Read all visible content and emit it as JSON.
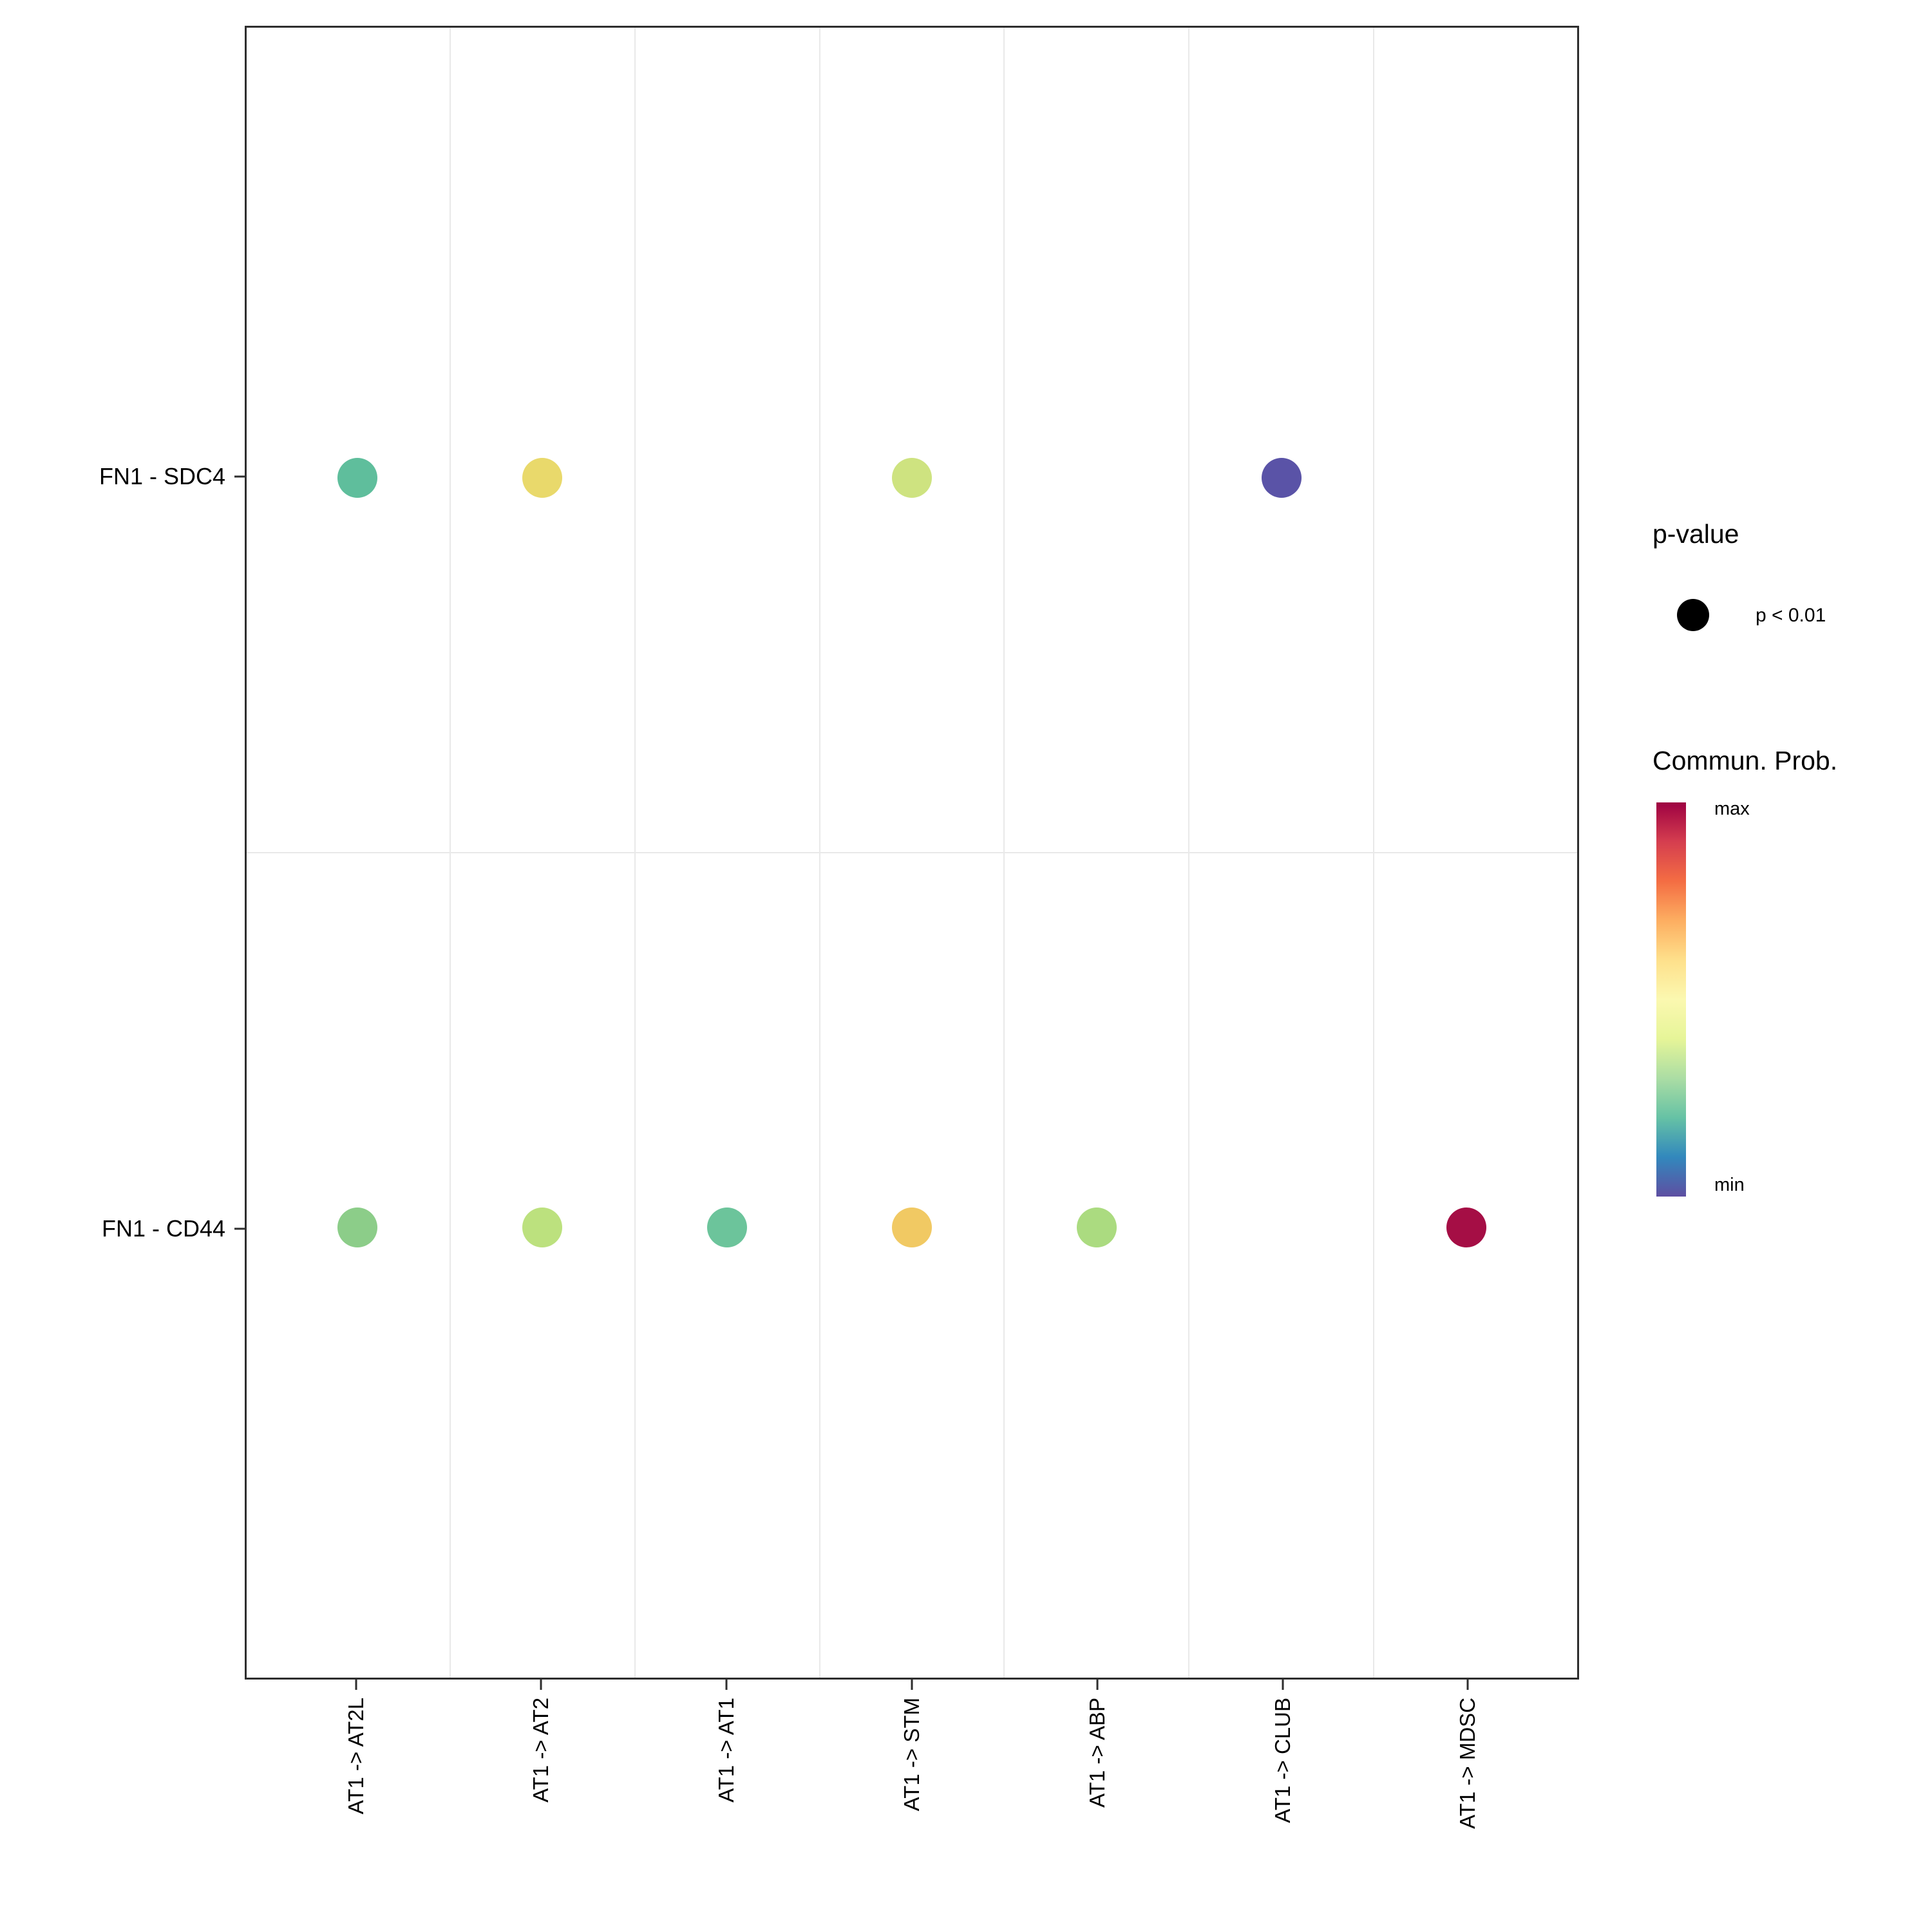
{
  "y_axis": {
    "labels": [
      "FN1 - SDC4",
      "FN1 - CD44"
    ]
  },
  "x_axis": {
    "labels": [
      "AT1 -> AT2L",
      "AT1 -> AT2",
      "AT1 -> AT1",
      "AT1 -> STM",
      "AT1 -> ABP",
      "AT1 -> CLUB",
      "AT1 -> MDSC"
    ]
  },
  "legend": {
    "pvalue": {
      "title": "p-value",
      "items": [
        {
          "label": "p < 0.01"
        }
      ]
    },
    "colorbar": {
      "title": "Commun. Prob.",
      "max_label": "max",
      "min_label": "min",
      "stops": [
        "#9E0142",
        "#D53E4F",
        "#F46D43",
        "#FDAE61",
        "#FEE08B",
        "#FBF8B0",
        "#E6F598",
        "#ABDDA4",
        "#66C2A5",
        "#3288BD",
        "#5E4FA2"
      ]
    }
  },
  "chart_data": {
    "type": "scatter",
    "subtype": "bubble-dotplot",
    "title": "",
    "xlabel": "",
    "ylabel": "",
    "grid": "light-gray minor gridlines between categories",
    "legend_position": "right",
    "x_categories": [
      "AT1 -> AT2L",
      "AT1 -> AT2",
      "AT1 -> AT1",
      "AT1 -> STM",
      "AT1 -> ABP",
      "AT1 -> CLUB",
      "AT1 -> MDSC"
    ],
    "y_categories": [
      "FN1 - SDC4",
      "FN1 - CD44"
    ],
    "value_name": "Commun. Prob.",
    "value_range": [
      "min",
      "max"
    ],
    "points": [
      {
        "x": "AT1 -> AT2L",
        "y": "FN1 - SDC4",
        "p_value": "p < 0.01",
        "prob_norm": 0.25,
        "color": "#5FBE9C"
      },
      {
        "x": "AT1 -> AT2",
        "y": "FN1 - SDC4",
        "p_value": "p < 0.01",
        "prob_norm": 0.58,
        "color": "#E9D96B"
      },
      {
        "x": "AT1 -> STM",
        "y": "FN1 - SDC4",
        "p_value": "p < 0.01",
        "prob_norm": 0.45,
        "color": "#CEE380"
      },
      {
        "x": "AT1 -> CLUB",
        "y": "FN1 - SDC4",
        "p_value": "p < 0.01",
        "prob_norm": 0.02,
        "color": "#5A53A7"
      },
      {
        "x": "AT1 -> AT2L",
        "y": "FN1 - CD44",
        "p_value": "p < 0.01",
        "prob_norm": 0.3,
        "color": "#8CCD89"
      },
      {
        "x": "AT1 -> AT2",
        "y": "FN1 - CD44",
        "p_value": "p < 0.01",
        "prob_norm": 0.4,
        "color": "#BCE17E"
      },
      {
        "x": "AT1 -> AT1",
        "y": "FN1 - CD44",
        "p_value": "p < 0.01",
        "prob_norm": 0.26,
        "color": "#6CC49B"
      },
      {
        "x": "AT1 -> STM",
        "y": "FN1 - CD44",
        "p_value": "p < 0.01",
        "prob_norm": 0.63,
        "color": "#F1C963"
      },
      {
        "x": "AT1 -> ABP",
        "y": "FN1 - CD44",
        "p_value": "p < 0.01",
        "prob_norm": 0.38,
        "color": "#ABDB80"
      },
      {
        "x": "AT1 -> MDSC",
        "y": "FN1 - CD44",
        "p_value": "p < 0.01",
        "prob_norm": 1.0,
        "color": "#A50E45"
      }
    ]
  }
}
